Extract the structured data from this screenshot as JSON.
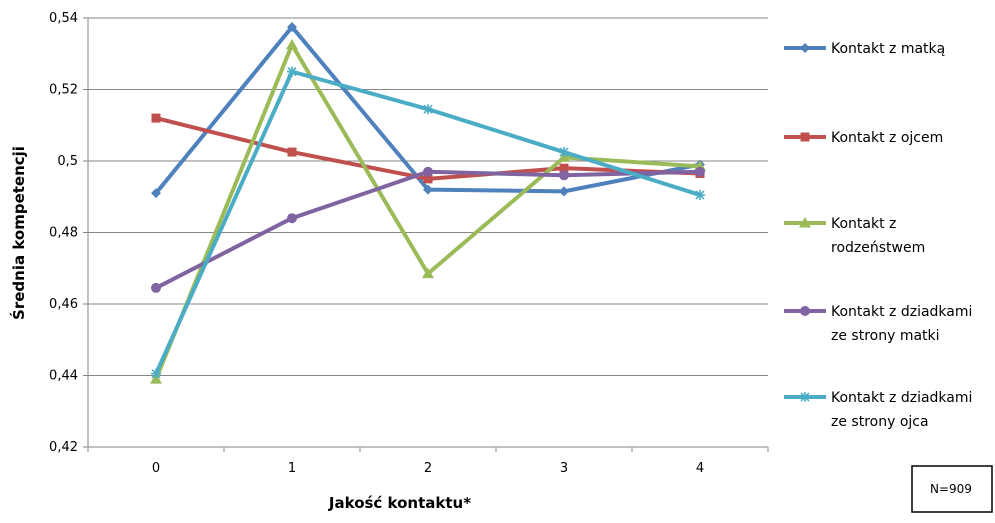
{
  "chart_data": {
    "type": "line",
    "x": [
      "0",
      "1",
      "2",
      "3",
      "4"
    ],
    "xlabel": "Jakość kontaktu*",
    "ylabel": "Średnia kompetencji",
    "ylim": [
      0.42,
      0.54
    ],
    "yticks": [
      "0,42",
      "0,44",
      "0,46",
      "0,48",
      "0,5",
      "0,52",
      "0,54"
    ],
    "grid": "horizontal",
    "legend": "right",
    "note": "N=909",
    "series": [
      {
        "name": "Kontakt z matką",
        "color": "#4F81BD",
        "marker": "diamond",
        "values": [
          0.491,
          0.5375,
          0.492,
          0.4915,
          0.499
        ]
      },
      {
        "name": "Kontakt z ojcem",
        "color": "#C0504D",
        "marker": "square",
        "values": [
          0.512,
          0.5025,
          0.495,
          0.498,
          0.4965
        ]
      },
      {
        "name": "Kontakt z rodzeństwem",
        "color": "#9BBB59",
        "marker": "triangle",
        "values": [
          0.439,
          0.5325,
          0.4685,
          0.501,
          0.4985
        ]
      },
      {
        "name": "Kontakt z dziadkami ze strony matki",
        "color": "#8064A2",
        "marker": "circle",
        "values": [
          0.4645,
          0.484,
          0.497,
          0.496,
          0.497
        ]
      },
      {
        "name": "Kontakt z dziadkami ze strony ojca",
        "color": "#4BACC6",
        "marker": "star",
        "values": [
          0.4405,
          0.525,
          0.5145,
          0.5025,
          0.4905
        ]
      }
    ]
  }
}
